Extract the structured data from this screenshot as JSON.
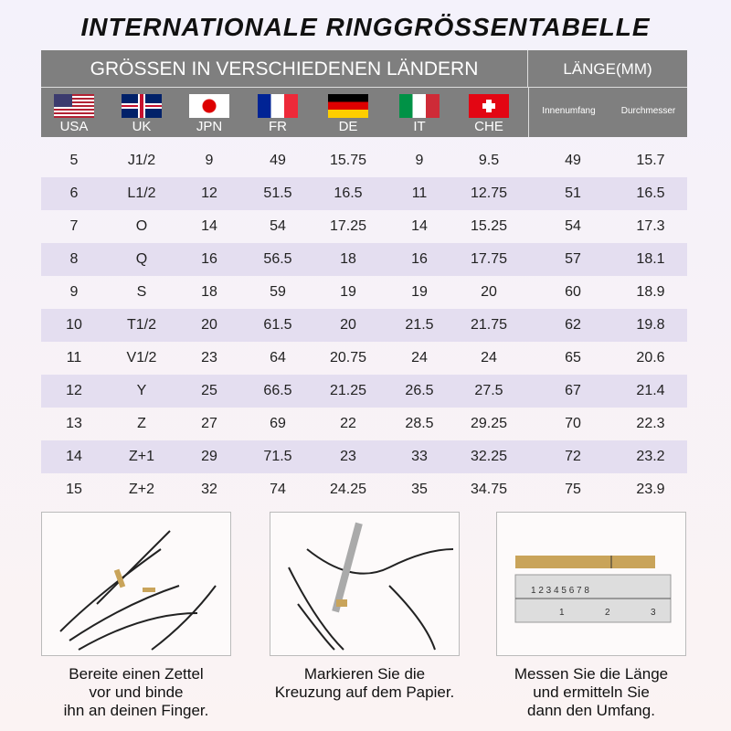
{
  "title": "INTERNATIONALE RINGGRÖSSENTABELLE",
  "header": {
    "countries_label": "GRÖSSEN IN VERSCHIEDENEN LÄNDERN",
    "length_label": "LÄNGE(MM)",
    "inner": "Innenumfang",
    "diameter": "Durchmesser",
    "countries": [
      {
        "code": "USA",
        "flag": "us-flag"
      },
      {
        "code": "UK",
        "flag": "uk-flag"
      },
      {
        "code": "JPN",
        "flag": "japan-flag"
      },
      {
        "code": "FR",
        "flag": "france-flag"
      },
      {
        "code": "DE",
        "flag": "germany-flag"
      },
      {
        "code": "IT",
        "flag": "italy-flag"
      },
      {
        "code": "CHE",
        "flag": "switzerland-flag"
      }
    ]
  },
  "rows": [
    [
      "5",
      "J1/2",
      "9",
      "49",
      "15.75",
      "9",
      "9.5",
      "49",
      "15.7"
    ],
    [
      "6",
      "L1/2",
      "12",
      "51.5",
      "16.5",
      "11",
      "12.75",
      "51",
      "16.5"
    ],
    [
      "7",
      "O",
      "14",
      "54",
      "17.25",
      "14",
      "15.25",
      "54",
      "17.3"
    ],
    [
      "8",
      "Q",
      "16",
      "56.5",
      "18",
      "16",
      "17.75",
      "57",
      "18.1"
    ],
    [
      "9",
      "S",
      "18",
      "59",
      "19",
      "19",
      "20",
      "60",
      "18.9"
    ],
    [
      "10",
      "T1/2",
      "20",
      "61.5",
      "20",
      "21.5",
      "21.75",
      "62",
      "19.8"
    ],
    [
      "11",
      "V1/2",
      "23",
      "64",
      "20.75",
      "24",
      "24",
      "65",
      "20.6"
    ],
    [
      "12",
      "Y",
      "25",
      "66.5",
      "21.25",
      "26.5",
      "27.5",
      "67",
      "21.4"
    ],
    [
      "13",
      "Z",
      "27",
      "69",
      "22",
      "28.5",
      "29.25",
      "70",
      "22.3"
    ],
    [
      "14",
      "Z+1",
      "29",
      "71.5",
      "23",
      "33",
      "32.25",
      "72",
      "23.2"
    ],
    [
      "15",
      "Z+2",
      "32",
      "74",
      "24.25",
      "35",
      "34.75",
      "75",
      "23.9"
    ]
  ],
  "steps": [
    {
      "lines": [
        "Bereite einen Zettel",
        "vor und binde",
        "ihn an deinen Finger."
      ]
    },
    {
      "lines": [
        "Markieren Sie die",
        "Kreuzung auf dem Papier."
      ]
    },
    {
      "lines": [
        "Messen Sie die Länge",
        "und ermitteln Sie",
        "dann den Umfang."
      ]
    }
  ],
  "colors": {
    "header": "#7f7f7f",
    "alt_row": "#e4def0",
    "paper_strip": "#c9a45a"
  }
}
